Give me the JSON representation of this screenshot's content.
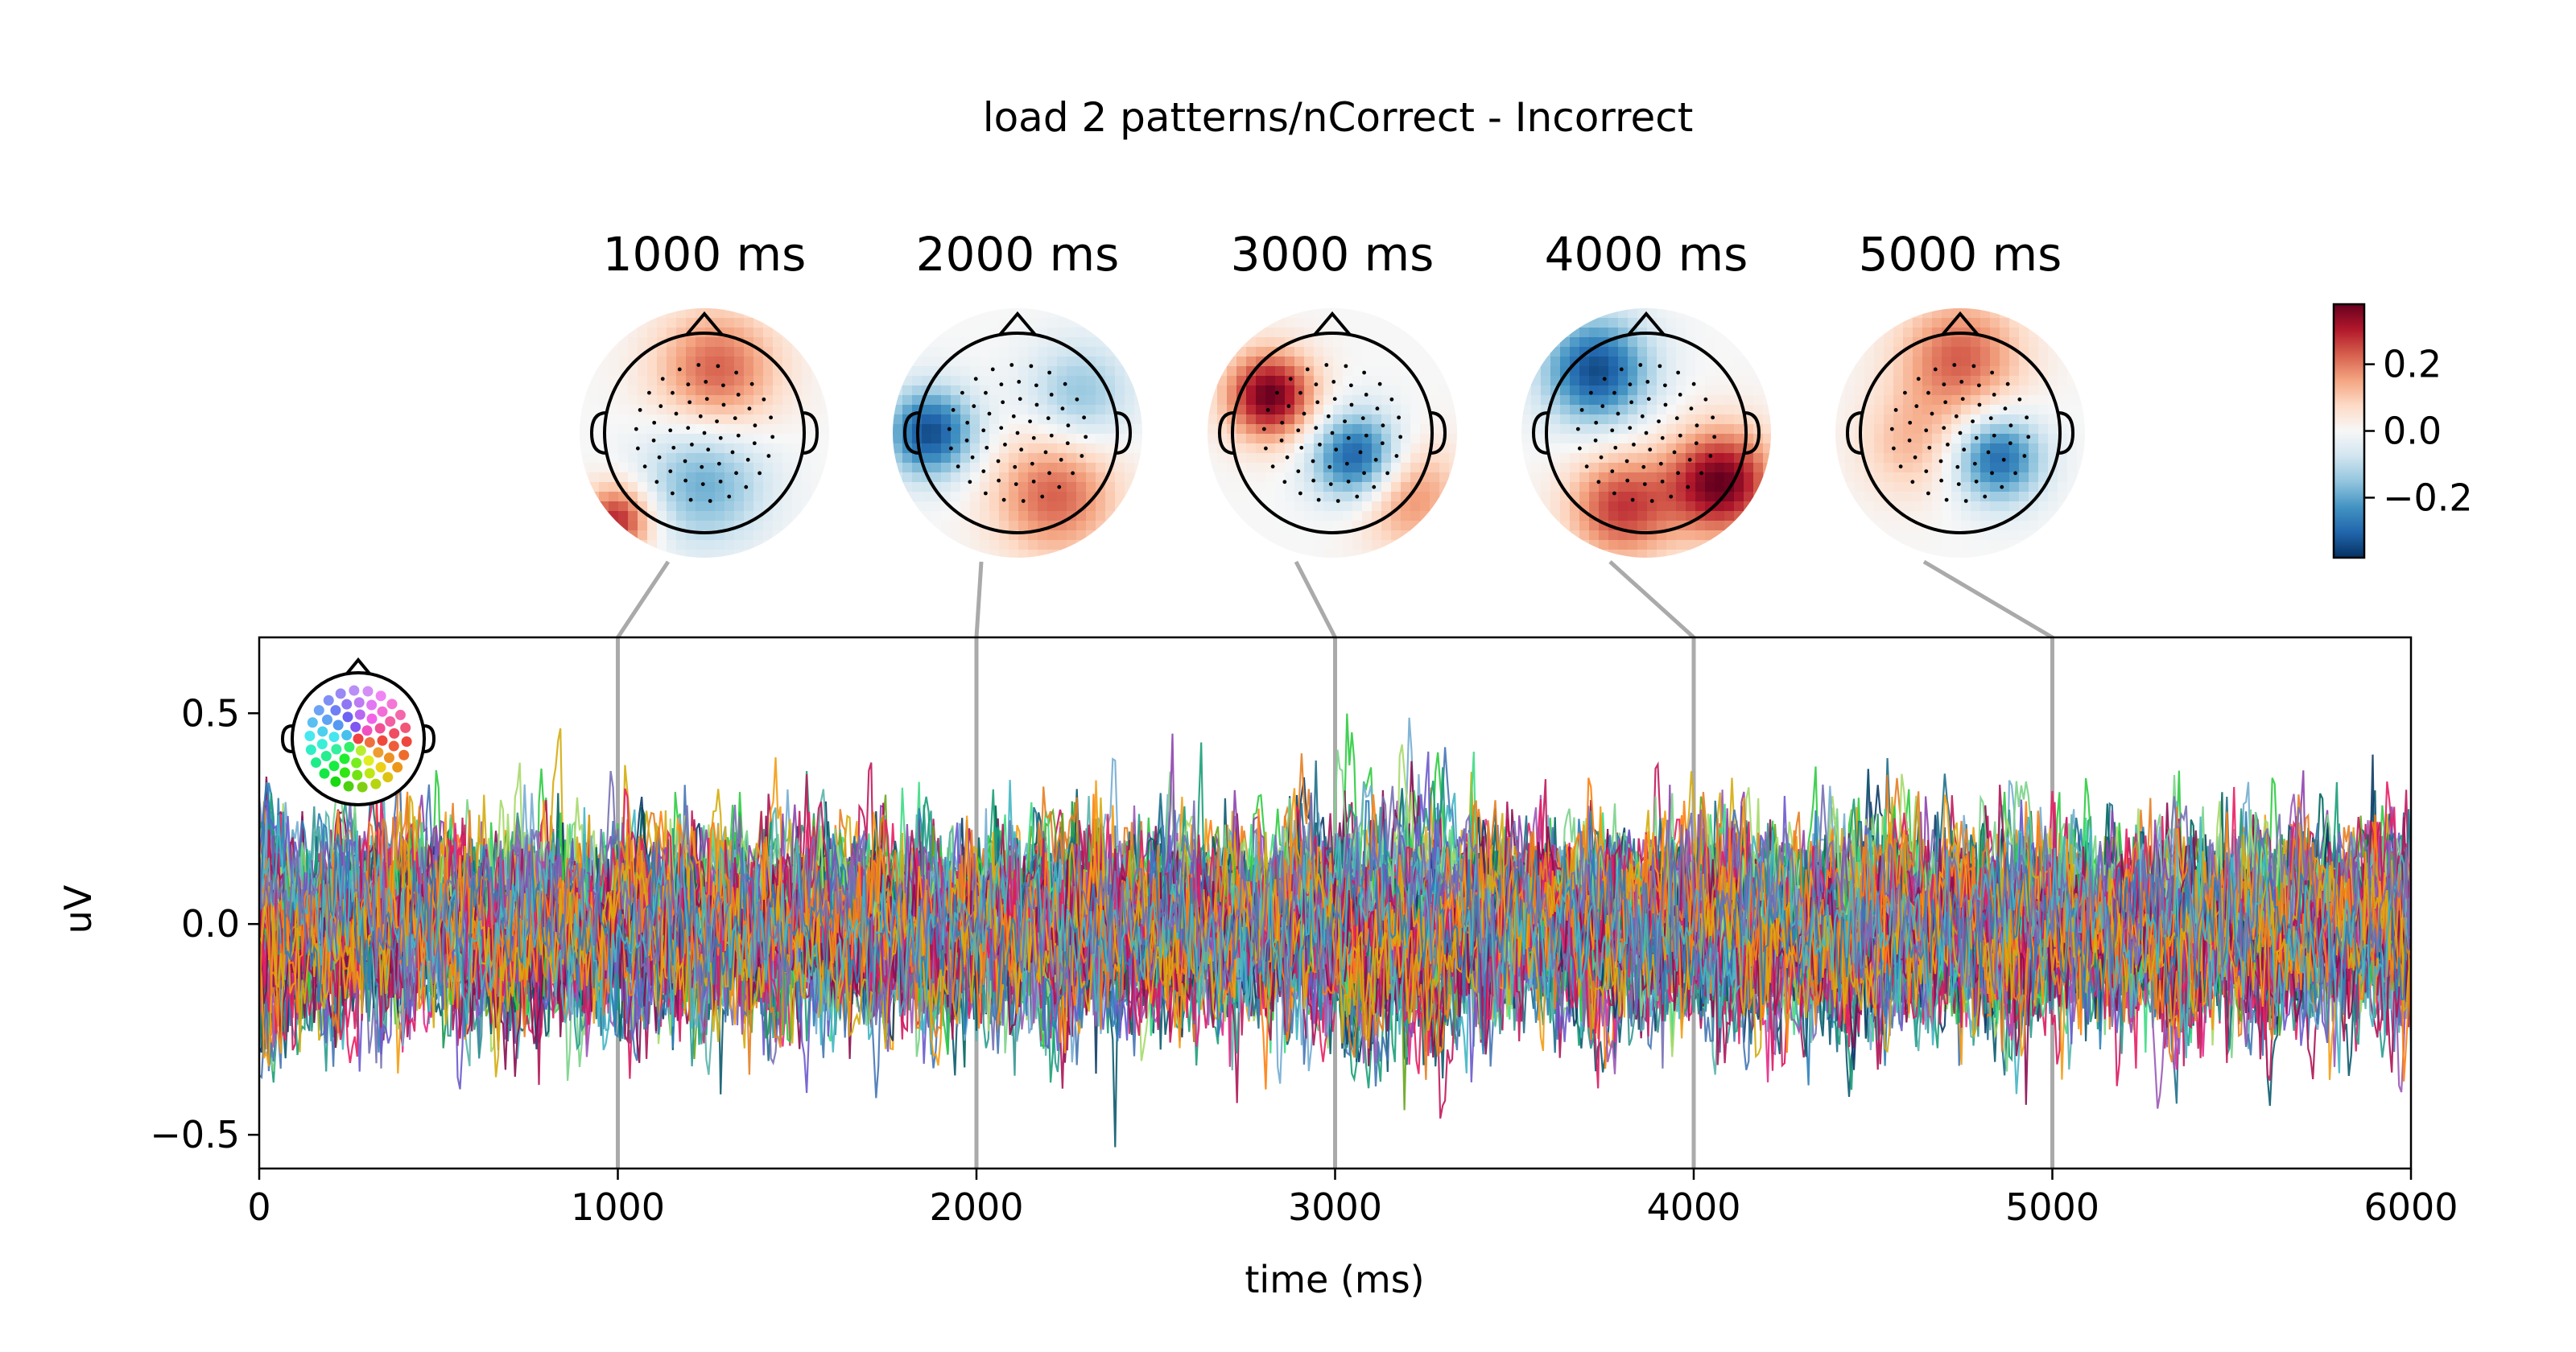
{
  "chart_data": {
    "type": "line",
    "title": "load 2 patterns/nCorrect - Incorrect",
    "xlabel": "time (ms)",
    "ylabel": "uV",
    "xlim": [
      0,
      6000
    ],
    "ylim": [
      -0.58,
      0.68
    ],
    "x_ticks": [
      0,
      1000,
      2000,
      3000,
      4000,
      5000,
      6000
    ],
    "x_tick_labels": [
      "0",
      "1000",
      "2000",
      "3000",
      "4000",
      "5000",
      "6000"
    ],
    "y_ticks": [
      0.5,
      0.0,
      -0.5
    ],
    "y_tick_labels": [
      "0.5",
      "0.0",
      "−0.5"
    ],
    "butterfly": {
      "n_channels": 64,
      "amplitude_range": [
        -0.54,
        0.62
      ],
      "note": "overlaid per-channel traces coloured by sensor position"
    },
    "topomaps": [
      {
        "time_ms": 1000,
        "label": "1000 ms"
      },
      {
        "time_ms": 2000,
        "label": "2000 ms"
      },
      {
        "time_ms": 3000,
        "label": "3000 ms"
      },
      {
        "time_ms": 4000,
        "label": "4000 ms"
      },
      {
        "time_ms": 5000,
        "label": "5000 ms"
      }
    ],
    "colorbar": {
      "cmap": "RdBu_r",
      "range": [
        -0.38,
        0.38
      ],
      "ticks": [
        0.2,
        0.0,
        -0.2
      ],
      "tick_labels": [
        "0.2",
        "0.0",
        "−0.2"
      ]
    },
    "colors": {
      "connector": "#aaaaaa",
      "axis": "#000000"
    }
  }
}
